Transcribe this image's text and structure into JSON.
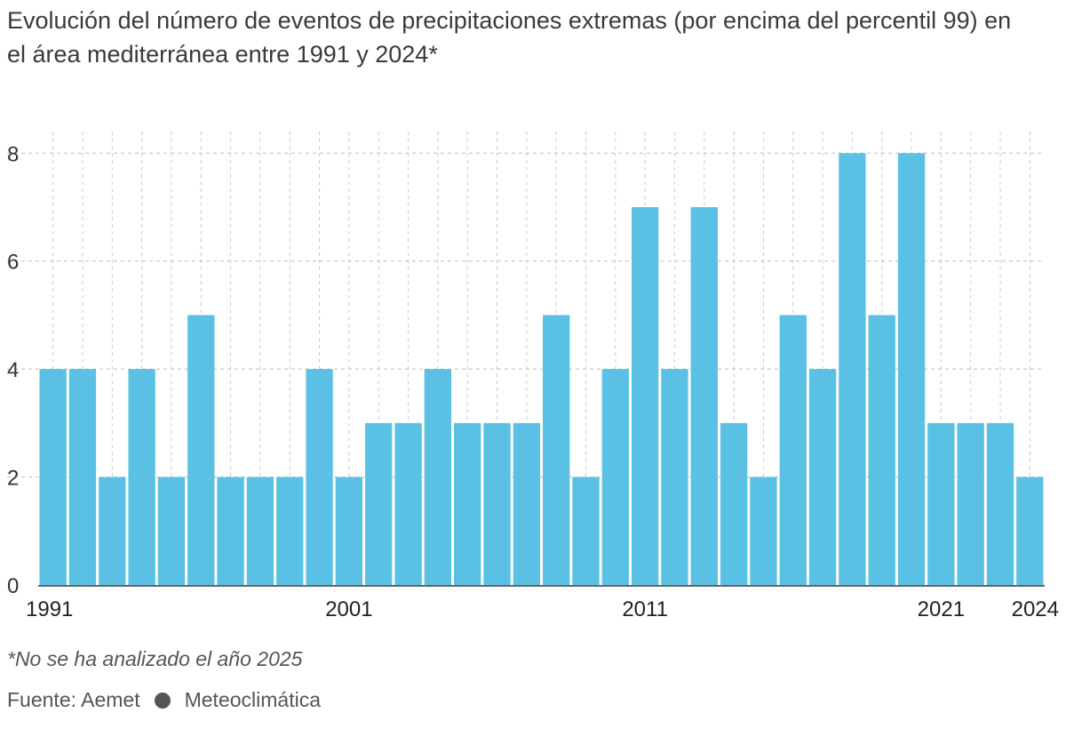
{
  "title": "Evolución del número de eventos de precipitaciones extremas (por encima del percentil 99) en el área mediterránea entre 1991 y 2024*",
  "footnote": "*No se ha analizado el año 2025",
  "source": {
    "label": "Fuente: Aemet",
    "credit": "Meteoclimática"
  },
  "chart_data": {
    "type": "bar",
    "title": "Evolución del número de eventos de precipitaciones extremas (por encima del percentil 99) en el área mediterránea entre 1991 y 2024*",
    "xlabel": "",
    "ylabel": "",
    "categories": [
      1991,
      1992,
      1993,
      1994,
      1995,
      1996,
      1997,
      1998,
      1999,
      2000,
      2001,
      2002,
      2003,
      2004,
      2005,
      2006,
      2007,
      2008,
      2009,
      2010,
      2011,
      2012,
      2013,
      2014,
      2015,
      2016,
      2017,
      2018,
      2019,
      2020,
      2021,
      2022,
      2023,
      2024
    ],
    "values": [
      4,
      4,
      2,
      4,
      2,
      5,
      2,
      2,
      2,
      4,
      2,
      3,
      3,
      4,
      3,
      3,
      3,
      5,
      2,
      4,
      7,
      4,
      7,
      3,
      2,
      5,
      4,
      8,
      5,
      8,
      3,
      3,
      3,
      2
    ],
    "ylim": [
      0,
      8.4
    ],
    "yticks": [
      0,
      2,
      4,
      6,
      8
    ],
    "xtick_labels": [
      "1991",
      "2001",
      "2011",
      "2021",
      "2024"
    ],
    "grid": true,
    "color": "#5bc1e4"
  }
}
